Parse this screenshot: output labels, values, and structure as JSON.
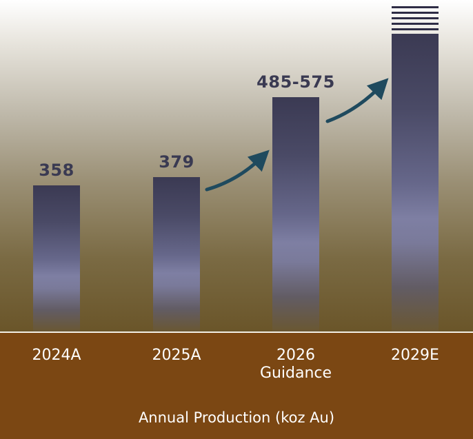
{
  "chart_data": {
    "type": "bar",
    "categories": [
      "2024A",
      "2025A",
      "2026\nGuidance",
      "2029E"
    ],
    "values": [
      358,
      379,
      575,
      730
    ],
    "value_labels": [
      "358",
      "379",
      "485-575",
      ""
    ],
    "guidance_range": [
      485,
      575
    ],
    "xlabel": "Annual Production (koz Au)",
    "ylabel": "",
    "ylim": [
      0,
      780
    ],
    "grid": false,
    "legend": "none"
  },
  "colors": {
    "bar_top": "#3b3a53",
    "bar_mid": "#7e7fa3",
    "label_text": "#3a3a52",
    "axis_band": "#7b4713",
    "arrow": "#1f4a5e"
  }
}
